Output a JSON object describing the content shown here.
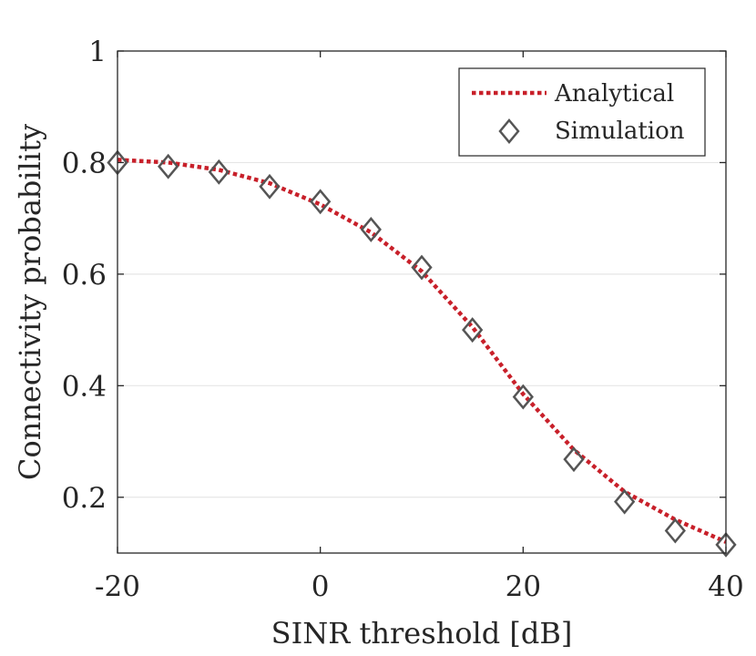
{
  "chart_data": {
    "type": "line",
    "title": "",
    "xlabel": "SINR threshold [dB]",
    "ylabel": "Connectivity probability",
    "xlim": [
      -20,
      40
    ],
    "ylim": [
      0.1,
      1.0
    ],
    "xticks": [
      -20,
      0,
      20,
      40
    ],
    "xtick_labels": [
      "-20",
      "0",
      "20",
      "40"
    ],
    "yticks": [
      0.2,
      0.4,
      0.6,
      0.8,
      1.0
    ],
    "ytick_labels": [
      "0.2",
      "0.4",
      "0.6",
      "0.8",
      "1"
    ],
    "grid": "horizontal",
    "legend_position": "top-right",
    "series": [
      {
        "name": "Analytical",
        "style": "dotted-line",
        "color": "#c8202a",
        "x": [
          -20,
          -15,
          -10,
          -5,
          0,
          5,
          10,
          15,
          20,
          25,
          30,
          35,
          40
        ],
        "y": [
          0.805,
          0.8,
          0.787,
          0.763,
          0.725,
          0.675,
          0.605,
          0.505,
          0.385,
          0.285,
          0.21,
          0.16,
          0.12
        ]
      },
      {
        "name": "Simulation",
        "style": "diamond-markers",
        "color": "#555555",
        "x": [
          -20,
          -15,
          -10,
          -5,
          0,
          5,
          10,
          15,
          20,
          25,
          30,
          35,
          40
        ],
        "y": [
          0.8,
          0.793,
          0.783,
          0.757,
          0.73,
          0.68,
          0.612,
          0.5,
          0.38,
          0.268,
          0.192,
          0.14,
          0.115
        ]
      }
    ]
  }
}
